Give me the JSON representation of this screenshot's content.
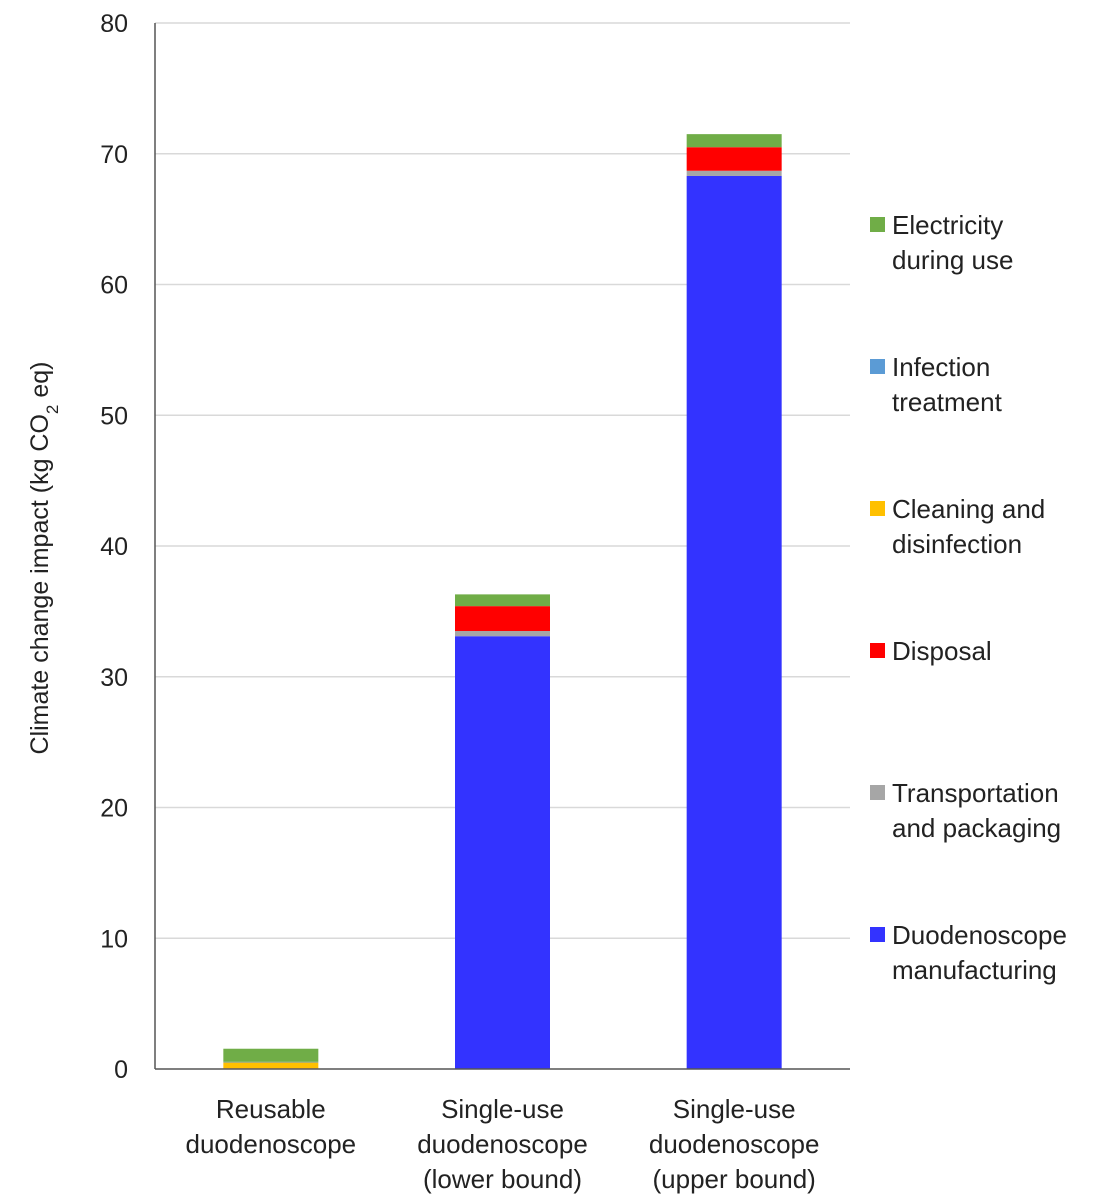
{
  "chart_data": {
    "type": "bar",
    "stacked": true,
    "categories": [
      [
        "Reusable",
        "duodenoscope"
      ],
      [
        "Single-use",
        "duodenoscope",
        "(lower bound)"
      ],
      [
        "Single-use",
        "duodenoscope",
        "(upper bound)"
      ]
    ],
    "ylabel": "Climate change impact (kg CO2 eq)",
    "ylabel_parts": {
      "before": "Climate change impact (kg CO",
      "sub": "2",
      "after": " eq)"
    },
    "ylim": [
      0,
      80
    ],
    "yticks": [
      0,
      10,
      20,
      30,
      40,
      50,
      60,
      70,
      80
    ],
    "grid": true,
    "legend_position": "right",
    "series": [
      {
        "name": "Duodenoscope manufacturing",
        "legend_lines": [
          "Duodenoscope",
          "manufacturing"
        ],
        "color": "#3333ff",
        "values": [
          0,
          33.1,
          68.3
        ]
      },
      {
        "name": "Transportation and packaging",
        "legend_lines": [
          "Transportation",
          "and packaging"
        ],
        "color": "#a6a6a6",
        "values": [
          0,
          0.4,
          0.4
        ]
      },
      {
        "name": "Disposal",
        "legend_lines": [
          "Disposal"
        ],
        "color": "#ff0000",
        "values": [
          0.05,
          1.9,
          1.8
        ]
      },
      {
        "name": "Cleaning and disinfection",
        "legend_lines": [
          "Cleaning and",
          "disinfection"
        ],
        "color": "#ffc000",
        "values": [
          0.45,
          0,
          0
        ]
      },
      {
        "name": "Infection treatment",
        "legend_lines": [
          "Infection",
          "treatment"
        ],
        "color": "#5b9bd5",
        "values": [
          0.05,
          0,
          0
        ]
      },
      {
        "name": "Electricity during use",
        "legend_lines": [
          "Electricity",
          "during use"
        ],
        "color": "#70ad47",
        "values": [
          1.0,
          0.9,
          1.0
        ]
      }
    ]
  }
}
